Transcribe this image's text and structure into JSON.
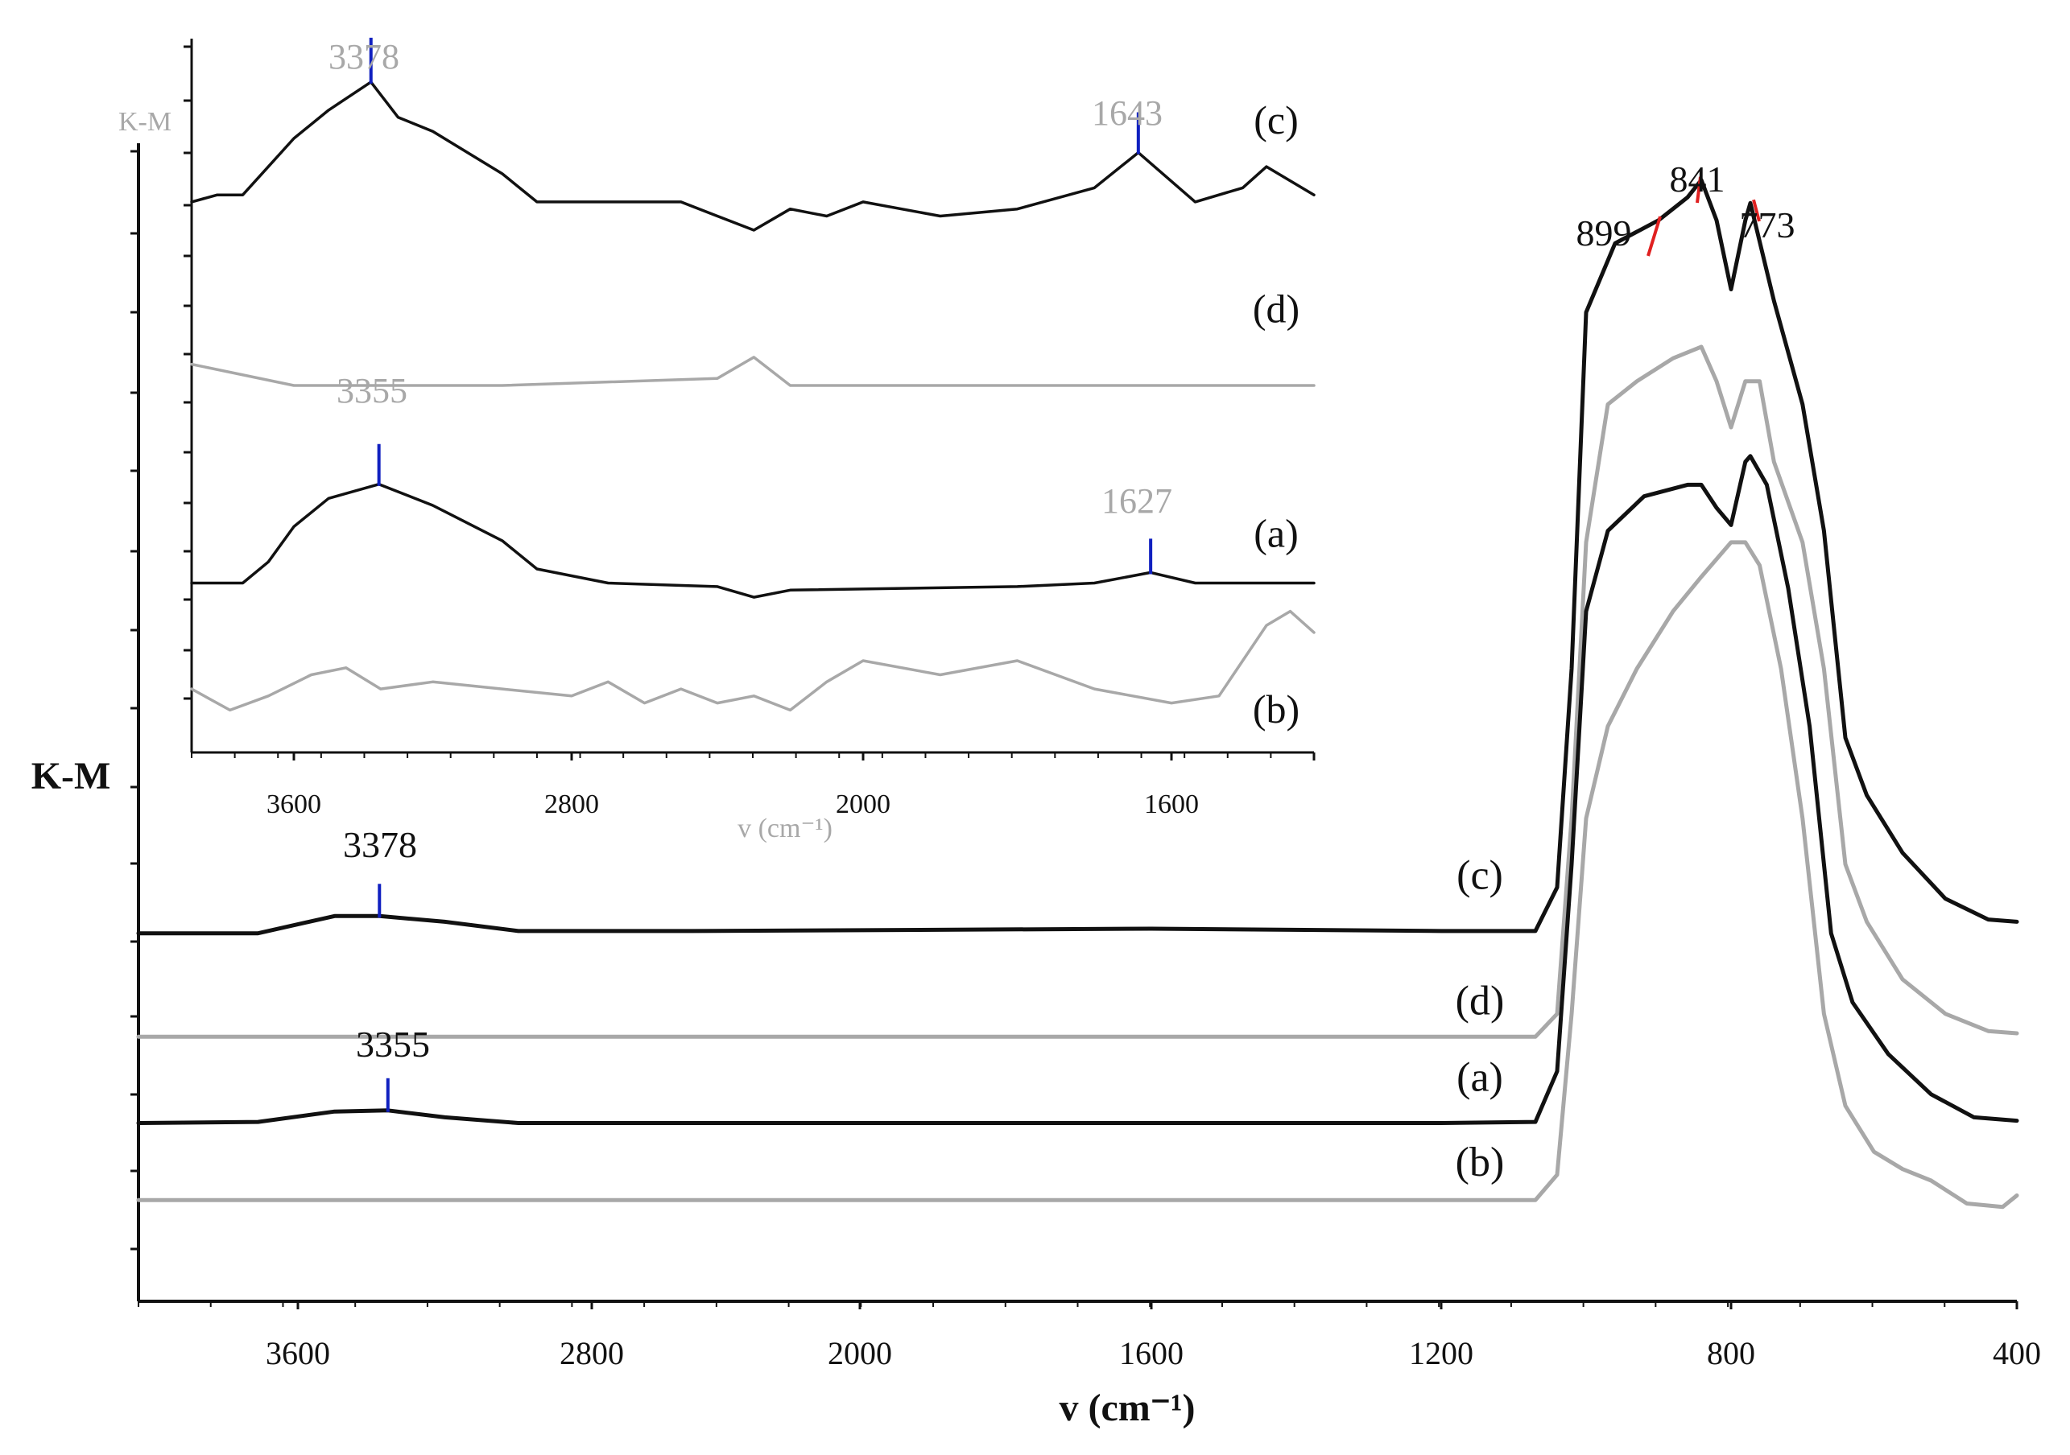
{
  "chart_data": [
    {
      "id": "main",
      "type": "line",
      "title": "",
      "ylabel": "K-M",
      "xlabel": "v (cm⁻¹)",
      "x_ticks": [
        "3600",
        "2800",
        "2000",
        "1600",
        "1200",
        "800",
        "400"
      ],
      "grid": false,
      "legend": "none",
      "series": [
        {
          "name": "(c)",
          "color": "#111111",
          "points": [
            [
              4000,
              0.32
            ],
            [
              3700,
              0.32
            ],
            [
              3500,
              0.335
            ],
            [
              3378,
              0.335
            ],
            [
              3200,
              0.33
            ],
            [
              3000,
              0.322
            ],
            [
              2500,
              0.322
            ],
            [
              1600,
              0.324
            ],
            [
              1200,
              0.322
            ],
            [
              1070,
              0.322
            ],
            [
              1040,
              0.36
            ],
            [
              1020,
              0.55
            ],
            [
              1000,
              0.86
            ],
            [
              960,
              0.92
            ],
            [
              900,
              0.94
            ],
            [
              860,
              0.96
            ],
            [
              841,
              0.975
            ],
            [
              820,
              0.94
            ],
            [
              800,
              0.88
            ],
            [
              780,
              0.94
            ],
            [
              773,
              0.955
            ],
            [
              740,
              0.87
            ],
            [
              700,
              0.78
            ],
            [
              670,
              0.67
            ],
            [
              640,
              0.49
            ],
            [
              610,
              0.44
            ],
            [
              560,
              0.39
            ],
            [
              500,
              0.35
            ],
            [
              440,
              0.332
            ],
            [
              400,
              0.33
            ]
          ]
        },
        {
          "name": "(d)",
          "color": "#a8a8a8",
          "points": [
            [
              4000,
              0.23
            ],
            [
              2000,
              0.23
            ],
            [
              1070,
              0.23
            ],
            [
              1040,
              0.25
            ],
            [
              1020,
              0.42
            ],
            [
              1000,
              0.66
            ],
            [
              970,
              0.78
            ],
            [
              930,
              0.8
            ],
            [
              880,
              0.82
            ],
            [
              841,
              0.83
            ],
            [
              820,
              0.8
            ],
            [
              800,
              0.76
            ],
            [
              780,
              0.8
            ],
            [
              760,
              0.8
            ],
            [
              740,
              0.73
            ],
            [
              700,
              0.66
            ],
            [
              670,
              0.55
            ],
            [
              640,
              0.38
            ],
            [
              610,
              0.33
            ],
            [
              560,
              0.28
            ],
            [
              500,
              0.25
            ],
            [
              440,
              0.235
            ],
            [
              400,
              0.233
            ]
          ]
        },
        {
          "name": "(a)",
          "color": "#111111",
          "points": [
            [
              4000,
              0.155
            ],
            [
              3700,
              0.156
            ],
            [
              3500,
              0.165
            ],
            [
              3355,
              0.166
            ],
            [
              3200,
              0.16
            ],
            [
              3000,
              0.155
            ],
            [
              1200,
              0.155
            ],
            [
              1070,
              0.156
            ],
            [
              1040,
              0.2
            ],
            [
              1020,
              0.38
            ],
            [
              1000,
              0.6
            ],
            [
              970,
              0.67
            ],
            [
              920,
              0.7
            ],
            [
              860,
              0.71
            ],
            [
              841,
              0.71
            ],
            [
              820,
              0.69
            ],
            [
              800,
              0.675
            ],
            [
              780,
              0.73
            ],
            [
              773,
              0.735
            ],
            [
              750,
              0.71
            ],
            [
              720,
              0.62
            ],
            [
              690,
              0.5
            ],
            [
              660,
              0.32
            ],
            [
              630,
              0.26
            ],
            [
              580,
              0.215
            ],
            [
              520,
              0.18
            ],
            [
              460,
              0.16
            ],
            [
              400,
              0.157
            ]
          ]
        },
        {
          "name": "(b)",
          "color": "#a8a8a8",
          "points": [
            [
              4000,
              0.088
            ],
            [
              2000,
              0.088
            ],
            [
              1070,
              0.088
            ],
            [
              1040,
              0.11
            ],
            [
              1020,
              0.25
            ],
            [
              1000,
              0.42
            ],
            [
              970,
              0.5
            ],
            [
              930,
              0.55
            ],
            [
              880,
              0.6
            ],
            [
              841,
              0.63
            ],
            [
              800,
              0.66
            ],
            [
              780,
              0.66
            ],
            [
              760,
              0.64
            ],
            [
              730,
              0.55
            ],
            [
              700,
              0.42
            ],
            [
              670,
              0.25
            ],
            [
              640,
              0.17
            ],
            [
              600,
              0.13
            ],
            [
              560,
              0.115
            ],
            [
              520,
              0.105
            ],
            [
              470,
              0.085
            ],
            [
              420,
              0.082
            ],
            [
              400,
              0.092
            ]
          ]
        }
      ],
      "annotations": [
        {
          "label": "899",
          "x": 899,
          "color": "#e02020"
        },
        {
          "label": "841",
          "x": 841,
          "color": "#e02020"
        },
        {
          "label": "773",
          "x": 773,
          "color": "#e02020"
        },
        {
          "label": "3378",
          "x": 3378,
          "color": "#1020c0"
        },
        {
          "label": "3355",
          "x": 3355,
          "color": "#1020c0"
        }
      ]
    },
    {
      "id": "inset",
      "type": "line",
      "title": "",
      "ylabel": "K-M",
      "xlabel": "v (cm⁻¹)",
      "x_ticks": [
        "3600",
        "2800",
        "2000",
        "1600"
      ],
      "grid": false,
      "legend": "none",
      "series": [
        {
          "name": "(c)",
          "color": "#111111",
          "points": [
            [
              4000,
              0.78
            ],
            [
              3900,
              0.79
            ],
            [
              3800,
              0.79
            ],
            [
              3700,
              0.83
            ],
            [
              3600,
              0.87
            ],
            [
              3500,
              0.91
            ],
            [
              3378,
              0.95
            ],
            [
              3300,
              0.9
            ],
            [
              3200,
              0.88
            ],
            [
              3000,
              0.82
            ],
            [
              2900,
              0.78
            ],
            [
              2700,
              0.78
            ],
            [
              2500,
              0.78
            ],
            [
              2400,
              0.76
            ],
            [
              2300,
              0.74
            ],
            [
              2200,
              0.77
            ],
            [
              2100,
              0.76
            ],
            [
              2000,
              0.78
            ],
            [
              1900,
              0.76
            ],
            [
              1800,
              0.77
            ],
            [
              1700,
              0.8
            ],
            [
              1643,
              0.85
            ],
            [
              1550,
              0.78
            ],
            [
              1450,
              0.8
            ],
            [
              1400,
              0.83
            ],
            [
              1300,
              0.79
            ]
          ]
        },
        {
          "name": "(d)",
          "color": "#a8a8a8",
          "points": [
            [
              4000,
              0.55
            ],
            [
              3600,
              0.52
            ],
            [
              3000,
              0.52
            ],
            [
              2400,
              0.53
            ],
            [
              2300,
              0.56
            ],
            [
              2200,
              0.52
            ],
            [
              1900,
              0.52
            ],
            [
              1600,
              0.52
            ],
            [
              1300,
              0.52
            ]
          ]
        },
        {
          "name": "(a)",
          "color": "#111111",
          "points": [
            [
              4000,
              0.24
            ],
            [
              3800,
              0.24
            ],
            [
              3700,
              0.27
            ],
            [
              3600,
              0.32
            ],
            [
              3500,
              0.36
            ],
            [
              3355,
              0.38
            ],
            [
              3200,
              0.35
            ],
            [
              3000,
              0.3
            ],
            [
              2900,
              0.26
            ],
            [
              2700,
              0.24
            ],
            [
              2400,
              0.235
            ],
            [
              2300,
              0.22
            ],
            [
              2200,
              0.23
            ],
            [
              1800,
              0.235
            ],
            [
              1700,
              0.24
            ],
            [
              1627,
              0.255
            ],
            [
              1550,
              0.24
            ],
            [
              1400,
              0.24
            ],
            [
              1300,
              0.24
            ]
          ]
        },
        {
          "name": "(b)",
          "color": "#a8a8a8",
          "points": [
            [
              4000,
              0.09
            ],
            [
              3850,
              0.06
            ],
            [
              3700,
              0.08
            ],
            [
              3550,
              0.11
            ],
            [
              3450,
              0.12
            ],
            [
              3350,
              0.09
            ],
            [
              3200,
              0.1
            ],
            [
              3000,
              0.09
            ],
            [
              2800,
              0.08
            ],
            [
              2700,
              0.1
            ],
            [
              2600,
              0.07
            ],
            [
              2500,
              0.09
            ],
            [
              2400,
              0.07
            ],
            [
              2300,
              0.08
            ],
            [
              2200,
              0.06
            ],
            [
              2100,
              0.1
            ],
            [
              2000,
              0.13
            ],
            [
              1900,
              0.11
            ],
            [
              1800,
              0.13
            ],
            [
              1700,
              0.09
            ],
            [
              1600,
              0.07
            ],
            [
              1500,
              0.08
            ],
            [
              1400,
              0.18
            ],
            [
              1350,
              0.2
            ],
            [
              1300,
              0.17
            ]
          ]
        }
      ],
      "annotations": [
        {
          "label": "3378",
          "x": 3378,
          "color": "#1020c0"
        },
        {
          "label": "1643",
          "x": 1643,
          "color": "#1020c0"
        },
        {
          "label": "3355",
          "x": 3355,
          "color": "#1020c0"
        },
        {
          "label": "1627",
          "x": 1627,
          "color": "#1020c0"
        }
      ]
    }
  ]
}
